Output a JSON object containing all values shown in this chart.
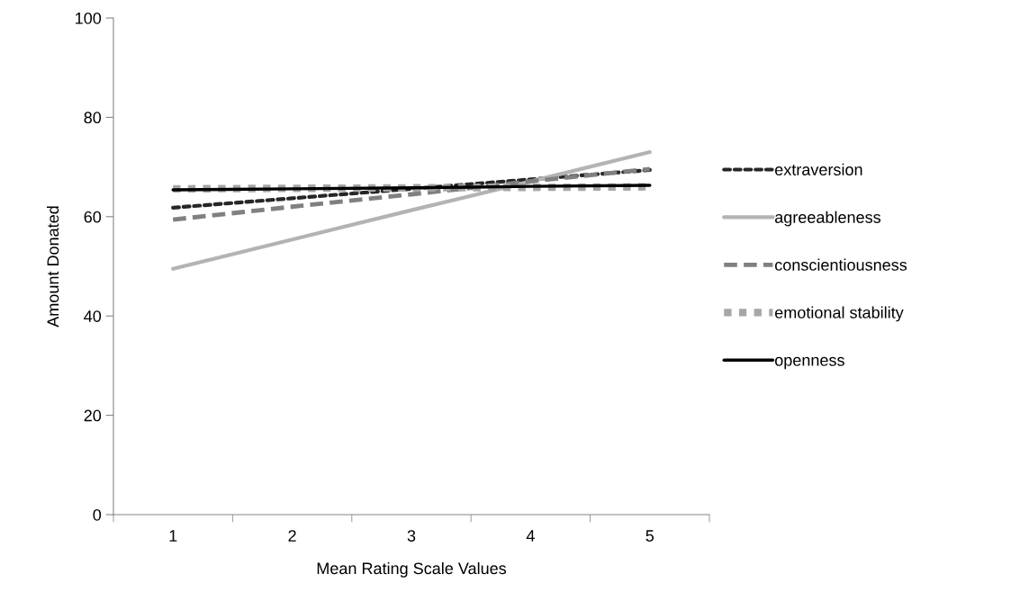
{
  "chart_data": {
    "type": "line",
    "xlabel": "Mean Rating Scale Values",
    "ylabel": "Amount Donated",
    "categories": [
      "1",
      "2",
      "3",
      "4",
      "5"
    ],
    "series": [
      {
        "name": "extraversion",
        "color": "#262626",
        "line_style": "dotted",
        "values": [
          61.8,
          63.7,
          65.6,
          67.5,
          69.4
        ]
      },
      {
        "name": "agreeableness",
        "color": "#b3b3b3",
        "line_style": "solid",
        "values": [
          49.5,
          55.4,
          61.3,
          67.1,
          73.0
        ]
      },
      {
        "name": "conscientiousness",
        "color": "#808080",
        "line_style": "dashed",
        "values": [
          59.4,
          62.0,
          64.5,
          67.1,
          69.6
        ]
      },
      {
        "name": "emotional stability",
        "color": "#a6a6a6",
        "line_style": "dotted",
        "values": [
          65.6,
          65.7,
          65.8,
          65.9,
          66.0
        ]
      },
      {
        "name": "openness",
        "color": "#000000",
        "line_style": "solid",
        "values": [
          65.4,
          65.6,
          65.8,
          66.1,
          66.3
        ]
      }
    ],
    "ylim": [
      0,
      100
    ],
    "yticks": [
      0,
      20,
      40,
      60,
      80,
      100
    ],
    "grid": false,
    "legend": "right",
    "marker": "none"
  }
}
